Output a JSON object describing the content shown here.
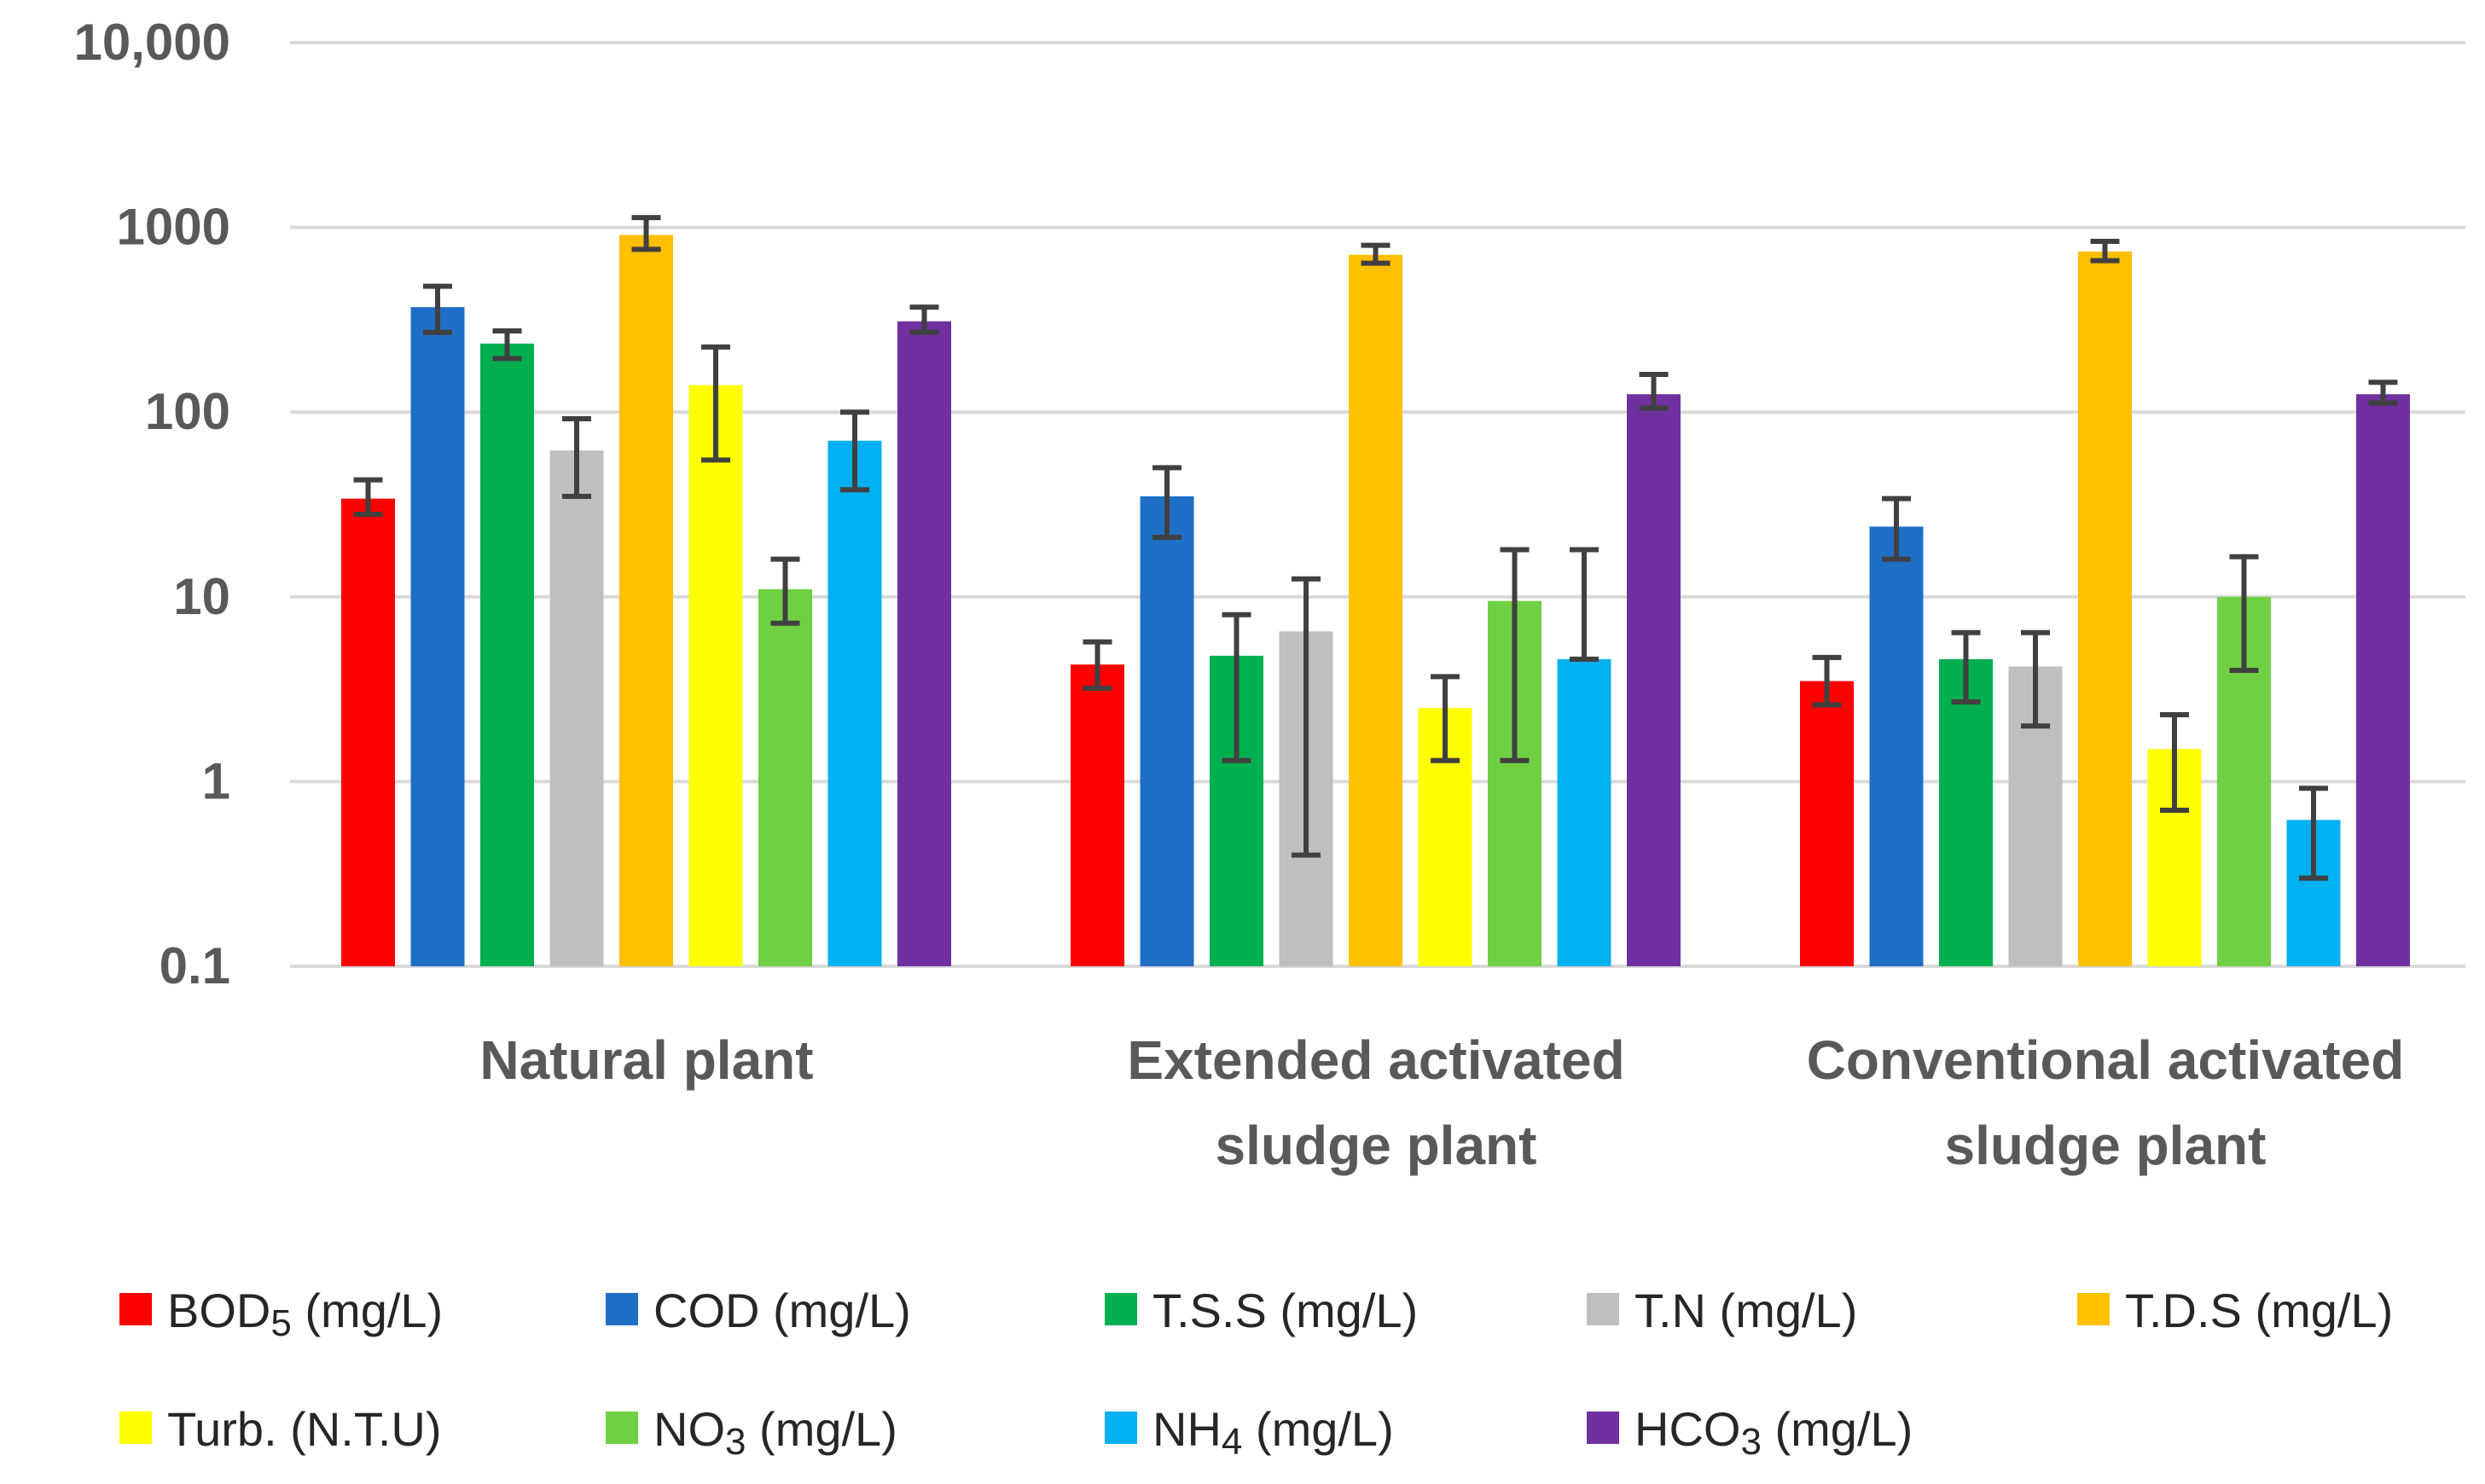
{
  "chart_data": {
    "type": "bar",
    "title": "",
    "xlabel": "",
    "ylabel": "",
    "yscale": "log",
    "ylim": [
      0.1,
      10000
    ],
    "grid": true,
    "legend_position": "bottom",
    "yticks": [
      {
        "value": 0.1,
        "label": "0.1"
      },
      {
        "value": 1,
        "label": "1"
      },
      {
        "value": 10,
        "label": "10"
      },
      {
        "value": 100,
        "label": "100"
      },
      {
        "value": 1000,
        "label": "1000"
      },
      {
        "value": 10000,
        "label": "10,000"
      }
    ],
    "categories": [
      [
        "Natural  plant"
      ],
      [
        "Extended activated",
        "sludge plant"
      ],
      [
        "Conventional activated",
        "sludge plant"
      ]
    ],
    "series": [
      {
        "name": "BOD",
        "sub": "5",
        "unit": " (mg/L)",
        "color": "#ff0000",
        "values": [
          34,
          4.3,
          3.5
        ],
        "err_low": [
          28,
          3.2,
          2.6
        ],
        "err_high": [
          43,
          5.7,
          4.7
        ]
      },
      {
        "name": "COD",
        "sub": "",
        "unit": "   (mg/L)",
        "color": "#1f6fc6",
        "values": [
          370,
          35,
          24
        ],
        "err_low": [
          270,
          21,
          16
        ],
        "err_high": [
          480,
          50,
          34
        ]
      },
      {
        "name": "T.S.S",
        "sub": "",
        "unit": "  (mg/L)",
        "color": "#00b050",
        "values": [
          235,
          4.8,
          4.6
        ],
        "err_low": [
          195,
          1.3,
          2.7
        ],
        "err_high": [
          275,
          8,
          6.4
        ]
      },
      {
        "name": "T.N",
        "sub": "",
        "unit": "  (mg/L)",
        "color": "#bfbfbf",
        "values": [
          62,
          6.5,
          4.2
        ],
        "err_low": [
          35,
          0.4,
          2.0
        ],
        "err_high": [
          92,
          12.5,
          6.4
        ]
      },
      {
        "name": "T.D.S",
        "sub": "",
        "unit": "  (mg/L)",
        "color": "#ffc000",
        "values": [
          910,
          710,
          740
        ],
        "err_low": [
          760,
          640,
          660
        ],
        "err_high": [
          1130,
          800,
          840
        ]
      },
      {
        "name": "Turb.",
        "sub": "",
        "unit": "  (N.T.U)",
        "color": "#ffff00",
        "values": [
          140,
          2.5,
          1.5
        ],
        "err_low": [
          55,
          1.3,
          0.7
        ],
        "err_high": [
          225,
          3.7,
          2.3
        ]
      },
      {
        "name": "NO",
        "sub": "3",
        "unit": " (mg/L)",
        "color": "#70d044",
        "values": [
          11,
          9.5,
          10
        ],
        "err_low": [
          7.2,
          1.3,
          4.0
        ],
        "err_high": [
          16,
          18,
          16.5
        ]
      },
      {
        "name": "NH",
        "sub": "4",
        "unit": " (mg/L)",
        "color": "#00b0f0",
        "values": [
          70,
          4.6,
          0.62
        ],
        "err_low": [
          38,
          4.6,
          0.3
        ],
        "err_high": [
          100,
          18,
          0.92
        ]
      },
      {
        "name": "HCO",
        "sub": "3",
        "unit": " (mg/L)",
        "color": "#7030a0",
        "values": [
          310,
          125,
          125
        ],
        "err_low": [
          270,
          105,
          112
        ],
        "err_high": [
          370,
          160,
          145
        ]
      }
    ]
  }
}
